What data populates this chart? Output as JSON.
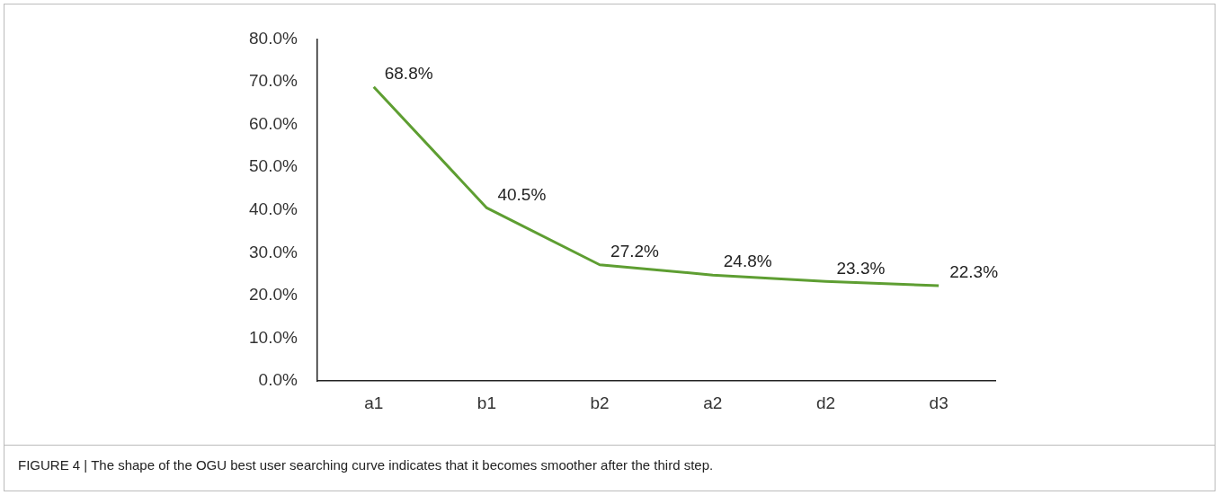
{
  "chart_data": {
    "type": "line",
    "categories": [
      "a1",
      "b1",
      "b2",
      "a2",
      "d2",
      "d3"
    ],
    "series": [
      {
        "color": "#5e9e32",
        "values": [
          68.8,
          40.5,
          27.2,
          24.8,
          23.3,
          22.3
        ],
        "value_labels": [
          "68.8%",
          "40.5%",
          "27.2%",
          "24.8%",
          "23.3%",
          "22.3%"
        ]
      }
    ],
    "ylim": [
      0,
      80
    ],
    "yticks": [
      {
        "value": 0,
        "label": "0.0%"
      },
      {
        "value": 10,
        "label": "10.0%"
      },
      {
        "value": 20,
        "label": "20.0%"
      },
      {
        "value": 30,
        "label": "30.0%"
      },
      {
        "value": 40,
        "label": "40.0%"
      },
      {
        "value": 50,
        "label": "50.0%"
      },
      {
        "value": 60,
        "label": "60.0%"
      },
      {
        "value": 70,
        "label": "70.0%"
      },
      {
        "value": 80,
        "label": "80.0%"
      }
    ],
    "grid": false,
    "legend": false,
    "marker": "none",
    "line_style": "solid",
    "annotations": [
      "FIGURE 4 | The shape of the OGU best user searching curve indicates that it becomes smoother after the third step."
    ]
  }
}
